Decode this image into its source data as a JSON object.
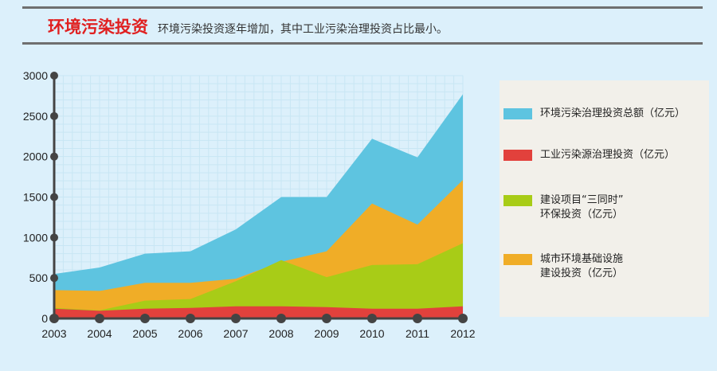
{
  "header": {
    "title": "环境污染投资",
    "subtitle": "环境污染投资逐年增加，其中工业污染治理投资占比最小。"
  },
  "colors": {
    "total": "#5ec4e0",
    "industrial": "#e2413c",
    "construction": "#a8cc17",
    "urban": "#f0ad27",
    "axis": "#444444",
    "grid": "#c8e6f4"
  },
  "legend": [
    {
      "label": "环境污染治理投资总额（亿元）",
      "color": "#5ec4e0"
    },
    {
      "label": "工业污染源治理投资（亿元）",
      "color": "#e2413c"
    },
    {
      "label": "建设项目“三同时”\n环保投资（亿元）",
      "color": "#a8cc17"
    },
    {
      "label": "城市环境基础设施\n建设投资（亿元）",
      "color": "#f0ad27"
    }
  ],
  "chart_data": {
    "type": "area",
    "categories": [
      "2003",
      "2004",
      "2005",
      "2006",
      "2007",
      "2008",
      "2009",
      "2010",
      "2011",
      "2012"
    ],
    "y_ticks": [
      "0",
      "500",
      "1000",
      "1500",
      "2000",
      "2500",
      "3000"
    ],
    "ylim": [
      0,
      3000
    ],
    "grid": true,
    "series": [
      {
        "name": "环境污染治理投资总额（亿元）",
        "values": [
          550,
          630,
          800,
          830,
          1100,
          1500,
          1500,
          2220,
          1990,
          2770
        ]
      },
      {
        "name": "城市环境基础设施建设投资（亿元）",
        "values": [
          350,
          340,
          440,
          440,
          490,
          700,
          830,
          1420,
          1160,
          1710
        ]
      },
      {
        "name": "建设项目“三同时”环保投资（亿元）",
        "values": [
          130,
          100,
          220,
          240,
          460,
          720,
          510,
          660,
          670,
          930
        ]
      },
      {
        "name": "工业污染源治理投资（亿元）",
        "values": [
          120,
          95,
          120,
          130,
          150,
          150,
          140,
          120,
          120,
          150
        ]
      }
    ]
  }
}
